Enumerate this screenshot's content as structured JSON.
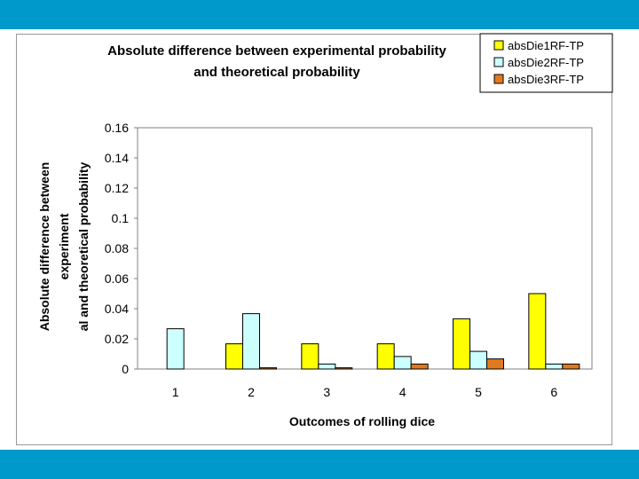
{
  "chart_data": {
    "type": "bar",
    "title_lines": [
      "Absolute difference between experimental probability",
      "and theoretical probability"
    ],
    "xlabel": "Outcomes of rolling dice",
    "ylabel_lines": [
      "Absolute difference between",
      "experiment",
      "al and theoretical probability"
    ],
    "categories": [
      "1",
      "2",
      "3",
      "4",
      "5",
      "6"
    ],
    "ylim": [
      0,
      0.16
    ],
    "yticks": [
      "0",
      "0.02",
      "0.04",
      "0.06",
      "0.08",
      "0.1",
      "0.12",
      "0.14",
      "0.16"
    ],
    "grid": false,
    "legend_position": "top-right",
    "series": [
      {
        "name": "absDie1RF-TP",
        "color": "#ffff00",
        "values": [
          0,
          0.0167,
          0.0167,
          0.0167,
          0.0333,
          0.05
        ]
      },
      {
        "name": "absDie2RF-TP",
        "color": "#ccffff",
        "values": [
          0.0267,
          0.0367,
          0.0033,
          0.0083,
          0.0117,
          0.0033
        ]
      },
      {
        "name": "absDie3RF-TP",
        "color": "#e07a20",
        "values": [
          0,
          0.0008,
          0.0008,
          0.0033,
          0.0067,
          0.0033
        ]
      }
    ],
    "plot_background": "#ffffff",
    "bar_border_color": "#000000"
  },
  "colors": {
    "band": "#0099cc"
  }
}
